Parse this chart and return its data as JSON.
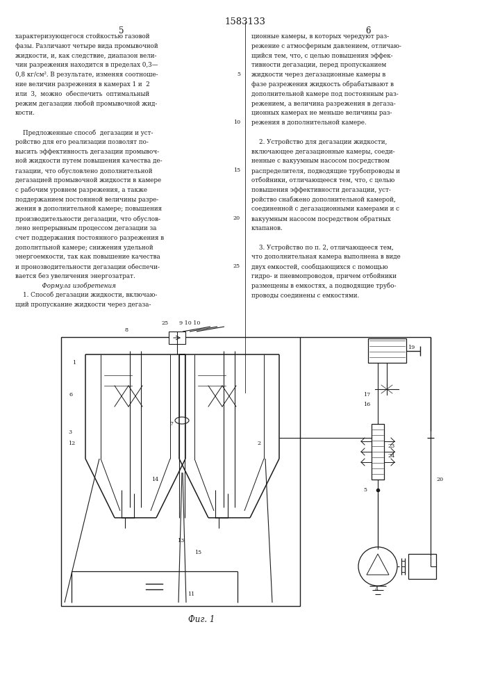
{
  "patent_number": "1583133",
  "page_left": "5",
  "page_right": "6",
  "background_color": "#ffffff",
  "text_color": "#1a1a1a",
  "left_column_text": [
    "характеризующегося стойкостью газовой",
    "фазы. Различают четыре вида промывочной",
    "жидкости, и, как следствие, диапазон вели-",
    "чин разрежения находится в пределах 0,3—",
    "0,8 кг/см². В результате, изменяя соотноше-",
    "ние величин разрежения в камерах 1 и  2",
    "или  3,  можно  обеспечить  оптимальный",
    "режим дегазации любой промывочной жид-",
    "кости.",
    "",
    "    Предложенные способ  дегазации и уст-",
    "ройство для его реализации позволят по-",
    "высить эффективность дегазации промывоч-",
    "ной жидкости путем повышения качества де-",
    "газации, что обусловлено дополнительной",
    "дегазацией промывочной жидкости в камере",
    "с рабочим уровнем разрежения, а также",
    "поддержанием постоянной величины разре-",
    "жения в дополнительной камере; повышения",
    "производительности дегазации, что обуслов-",
    "лено непрерывным процессом дегазации за",
    "счет поддержания постоянного разрежения в",
    "дополнтльной камере; снижения удельной",
    "энергоемкости, так как повышение качества",
    "и пронозводительности дегазации обеспечи-",
    "вается без увеличения энергозатрат.",
    "              Формула изобретения",
    "    1. Способ дегазации жидкости, включаю-",
    "щий пропускание жидкости через дегаза-"
  ],
  "right_column_text": [
    "ционные камеры, в которых чередуют раз-",
    "режение с атмосферным давлением, отличаю-",
    "щийся тем, что, с целью повышения эффек-",
    "тивности дегазации, перед пропусканием",
    "жидкости через дегазационные камеры в",
    "фазе разрежения жидкость обрабатывают в",
    "дополнительной камере под постоянным раз-",
    "режением, а величина разрежения в дегаза-",
    "ционных камерах не меньше величины раз-",
    "режения в дополнительной камере.",
    "",
    "    2. Устройство для дегазации жидкости,",
    "включающее дегазационные камеры, соеди-",
    "ненные с вакуумным насосом посредством",
    "распределителя, подводящие трубопроводы и",
    "отбойники, отличающееся тем, что, с целью",
    "повышения эффективности дегазации, уст-",
    "ройство снабжено дополнительной камерой,",
    "соединенной с дегазационными камерами и с",
    "вакуумным насосом посредством обратных",
    "клапанов.",
    "",
    "    3. Устройство по п. 2, отличающееся тем,",
    "что дополнительная камера выполнена в виде",
    "двух емкостей, сообщающихся с помощью",
    "гидро- и пневмопроводов, причем отбойники",
    "размещены в емкостях, а подводящие трубо-",
    "проводы соединены с емкостями."
  ],
  "fig_caption": "Фиг. 1",
  "line_numbers": [
    5,
    10,
    15,
    20,
    25
  ]
}
